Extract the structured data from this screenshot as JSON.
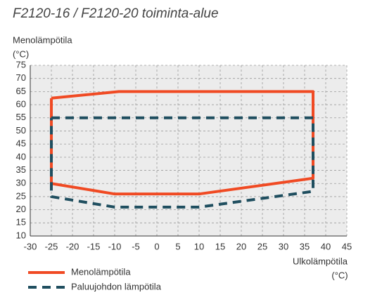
{
  "chart_data": {
    "type": "line",
    "title": "F2120-16 / F2120-20 toiminta-alue",
    "y_label": [
      "Menolämpötila",
      "(°C)"
    ],
    "x_label": [
      "Ulkolämpötila",
      "(°C)"
    ],
    "xlim": [
      -30,
      45
    ],
    "xticks": [
      -30,
      -25,
      -20,
      -15,
      -10,
      -5,
      0,
      5,
      10,
      15,
      20,
      25,
      30,
      35,
      40,
      45
    ],
    "ylim": [
      10,
      75
    ],
    "yticks": [
      10,
      15,
      20,
      25,
      30,
      35,
      40,
      45,
      50,
      55,
      60,
      65,
      70,
      75
    ],
    "grid": true,
    "series": [
      {
        "name": "Menolämpötila",
        "color": "#f04a23",
        "dashed": false,
        "x": [
          -25,
          -9,
          37,
          37,
          10,
          -10,
          -25,
          -25
        ],
        "values": [
          62.5,
          65,
          65,
          32,
          26,
          26,
          30,
          62.5
        ]
      },
      {
        "name": "Paluujohdon lämpötila",
        "color": "#1f4e5f",
        "dashed": true,
        "x": [
          -25,
          37,
          37,
          10,
          -10,
          -25,
          -25
        ],
        "values": [
          55,
          55,
          27,
          21,
          21,
          25,
          55
        ]
      }
    ]
  }
}
